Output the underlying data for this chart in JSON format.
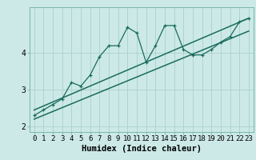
{
  "title": "",
  "xlabel": "Humidex (Indice chaleur)",
  "ylabel": "",
  "bg_color": "#cce9e7",
  "line_color": "#1a6b5e",
  "grid_color": "#aed4d1",
  "x_data": [
    0,
    1,
    2,
    3,
    4,
    5,
    6,
    7,
    8,
    9,
    10,
    11,
    12,
    13,
    14,
    15,
    16,
    17,
    18,
    19,
    20,
    21,
    22,
    23
  ],
  "y_data": [
    2.3,
    2.45,
    2.6,
    2.75,
    3.2,
    3.1,
    3.4,
    3.9,
    4.2,
    4.2,
    4.7,
    4.55,
    3.75,
    4.2,
    4.75,
    4.75,
    4.1,
    3.95,
    3.95,
    4.1,
    4.3,
    4.45,
    4.85,
    4.95
  ],
  "trend1_x": [
    0,
    23
  ],
  "trend1_y": [
    2.2,
    4.6
  ],
  "trend2_x": [
    0,
    23
  ],
  "trend2_y": [
    2.45,
    4.95
  ],
  "ylim": [
    1.85,
    5.25
  ],
  "xlim": [
    -0.5,
    23.5
  ],
  "yticks": [
    2,
    3,
    4
  ],
  "xticks": [
    0,
    1,
    2,
    3,
    4,
    5,
    6,
    7,
    8,
    9,
    10,
    11,
    12,
    13,
    14,
    15,
    16,
    17,
    18,
    19,
    20,
    21,
    22,
    23
  ],
  "tick_fontsize": 6.5,
  "label_fontsize": 7.5
}
